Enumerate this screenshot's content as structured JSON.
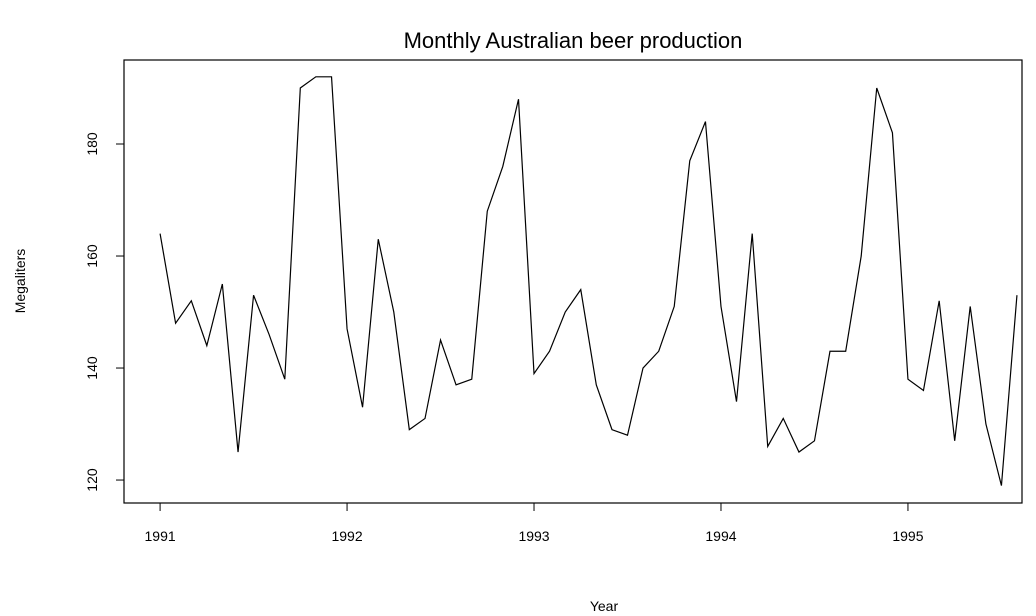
{
  "chart_data": {
    "type": "line",
    "title": "Monthly Australian beer production",
    "xlabel": "Year",
    "ylabel": "Megaliters",
    "x": [
      1991,
      1991.083,
      1991.167,
      1991.25,
      1991.333,
      1991.417,
      1991.5,
      1991.583,
      1991.667,
      1991.75,
      1991.833,
      1991.917,
      1992,
      1992.083,
      1992.167,
      1992.25,
      1992.333,
      1992.417,
      1992.5,
      1992.583,
      1992.667,
      1992.75,
      1992.833,
      1992.917,
      1993,
      1993.083,
      1993.167,
      1993.25,
      1993.333,
      1993.417,
      1993.5,
      1993.583,
      1993.667,
      1993.75,
      1993.833,
      1993.917,
      1994,
      1994.083,
      1994.167,
      1994.25,
      1994.333,
      1994.417,
      1994.5,
      1994.583,
      1994.667,
      1994.75,
      1994.833,
      1994.917,
      1995,
      1995.083,
      1995.167,
      1995.25,
      1995.333,
      1995.417,
      1995.5,
      1995.583
    ],
    "values": [
      164,
      148,
      152,
      144,
      155,
      125,
      153,
      146,
      138,
      190,
      192,
      192,
      147,
      133,
      163,
      150,
      129,
      131,
      145,
      137,
      138,
      168,
      176,
      188,
      139,
      143,
      150,
      154,
      137,
      129,
      128,
      140,
      143,
      151,
      177,
      184,
      151,
      134,
      164,
      126,
      131,
      125,
      127,
      143,
      143,
      160,
      190,
      182,
      138,
      136,
      152,
      127,
      151,
      130,
      119,
      153
    ],
    "color": "#000000",
    "xlim": [
      1990.807,
      1995.61
    ],
    "xticks": [
      1991,
      1992,
      1993,
      1994,
      1995
    ],
    "ylim": [
      115.9,
      195
    ],
    "yticks": [
      120,
      140,
      160,
      180
    ],
    "grid": false
  }
}
